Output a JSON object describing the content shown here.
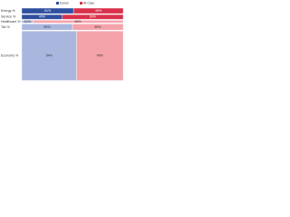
{
  "chart_data": {
    "type": "mosaic",
    "categories": [
      "Energy %",
      "Service %",
      "Healthcare %",
      "Tax %",
      "Economy %"
    ],
    "heights": [
      8,
      7,
      4,
      9,
      72
    ],
    "series": [
      {
        "name": "Donor",
        "color": "#2f4f9e",
        "light_color": "#a9b7de",
        "values": [
          51,
          40,
          11,
          50,
          54
        ],
        "value_labels": [
          "51%",
          "40%",
          "11%",
          "50%",
          "54%"
        ]
      },
      {
        "name": "At Care",
        "color": "#d9314b",
        "light_color": "#f4a3ab",
        "values": [
          49,
          60,
          89,
          50,
          46
        ],
        "value_labels": [
          "49%",
          "60%",
          "89%",
          "50%",
          "46%"
        ]
      }
    ],
    "light_rows": [
      false,
      false,
      true,
      true,
      true
    ]
  }
}
